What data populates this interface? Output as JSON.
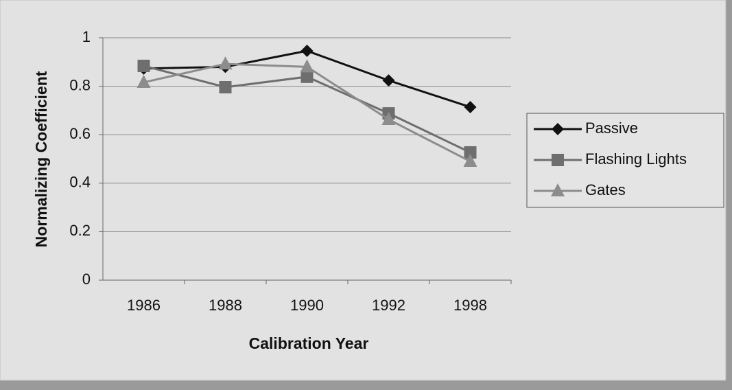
{
  "chart_data": {
    "type": "line",
    "xlabel": "Calibration Year",
    "ylabel": "Normalizing Coefficient",
    "categories": [
      "1986",
      "1988",
      "1990",
      "1992",
      "1998"
    ],
    "series": [
      {
        "name": "Passive",
        "color": "#111111",
        "marker": "diamond",
        "values": [
          0.873,
          0.88,
          0.946,
          0.824,
          0.714
        ]
      },
      {
        "name": "Flashing Lights",
        "color": "#6e6e6e",
        "marker": "square",
        "values": [
          0.884,
          0.796,
          0.839,
          0.688,
          0.527
        ]
      },
      {
        "name": "Gates",
        "color": "#8c8c8c",
        "marker": "triangle",
        "values": [
          0.816,
          0.892,
          0.88,
          0.663,
          0.49
        ]
      }
    ],
    "ylim": [
      0,
      1
    ],
    "yticks": [
      0,
      0.2,
      0.4,
      0.6,
      0.8,
      1
    ],
    "grid": true,
    "legend": "right"
  }
}
